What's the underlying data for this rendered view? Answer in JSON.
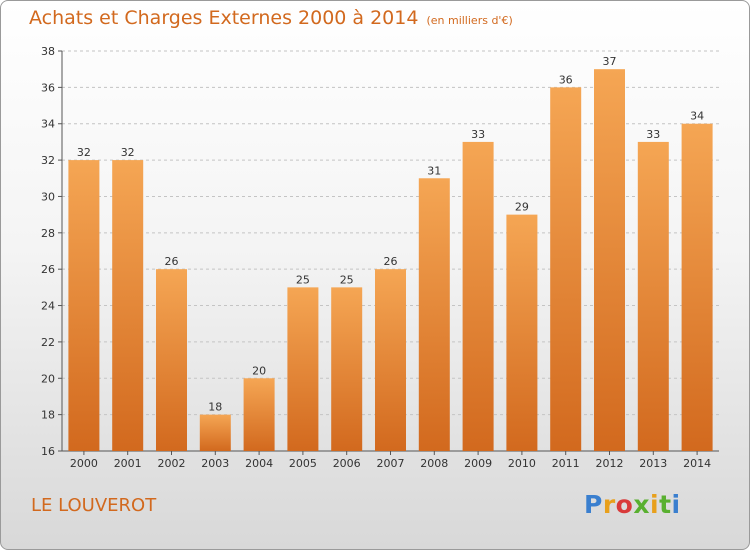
{
  "header": {
    "title": "Achats et Charges Externes 2000 à 2014",
    "subtitle": "(en milliers d'€)"
  },
  "footer": {
    "commune": "LE LOUVEROT",
    "brand": [
      "P",
      "r",
      "o",
      "x",
      "i",
      "t",
      "i"
    ]
  },
  "chart_data": {
    "type": "bar",
    "title": "Achats et Charges Externes 2000 à 2014",
    "subtitle": "(en milliers d'€)",
    "categories": [
      "2000",
      "2001",
      "2002",
      "2003",
      "2004",
      "2005",
      "2006",
      "2007",
      "2008",
      "2009",
      "2010",
      "2011",
      "2012",
      "2013",
      "2014"
    ],
    "values": [
      32,
      32,
      26,
      18,
      20,
      25,
      25,
      26,
      31,
      33,
      29,
      36,
      37,
      33,
      34
    ],
    "ylim": [
      16,
      38
    ],
    "yticks": [
      16,
      18,
      20,
      22,
      24,
      26,
      28,
      30,
      32,
      34,
      36,
      38
    ],
    "grid": true,
    "bar_color": "#f0913a"
  }
}
